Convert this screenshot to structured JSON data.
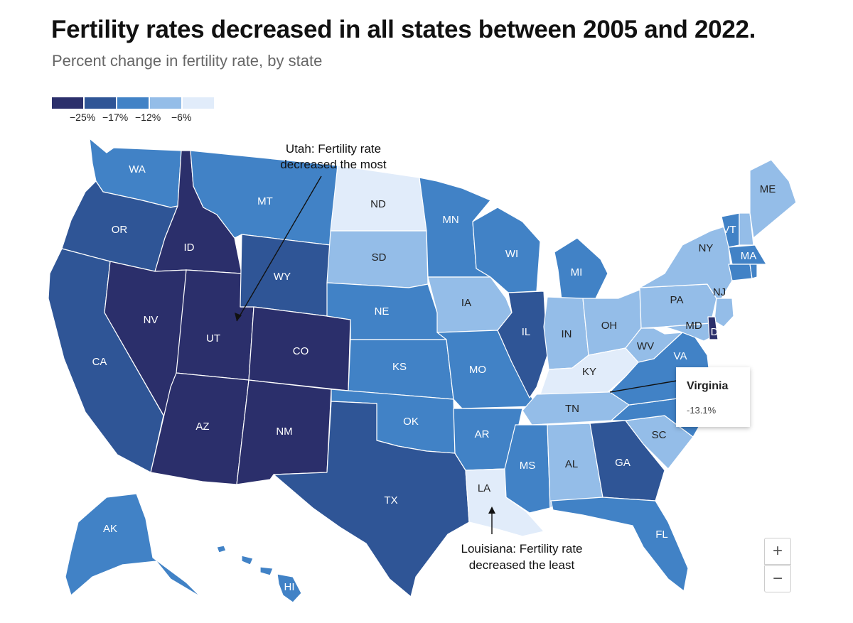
{
  "title": "Fertility rates decreased in all states between 2005 and 2022.",
  "subtitle": "Percent change in fertility rate, by state",
  "legend": {
    "colors": [
      "#2b2f6b",
      "#2f5596",
      "#4182c6",
      "#94bde8",
      "#e1ecfa"
    ],
    "labels": [
      "−25%",
      "−17%",
      "−12%",
      "−6%"
    ]
  },
  "annotations": {
    "utah": [
      "Utah: Fertility rate",
      "decreased the most"
    ],
    "louisiana": [
      "Louisiana: Fertility rate",
      "decreased the least"
    ]
  },
  "tooltip": {
    "state": "Virginia",
    "value": "-13.1%"
  },
  "zoom": {
    "in": "+",
    "out": "−"
  },
  "states": [
    {
      "abbr": "WA",
      "bin": 2
    },
    {
      "abbr": "OR",
      "bin": 1
    },
    {
      "abbr": "CA",
      "bin": 1
    },
    {
      "abbr": "ID",
      "bin": 0
    },
    {
      "abbr": "NV",
      "bin": 0
    },
    {
      "abbr": "UT",
      "bin": 0
    },
    {
      "abbr": "AZ",
      "bin": 0
    },
    {
      "abbr": "MT",
      "bin": 2
    },
    {
      "abbr": "WY",
      "bin": 1
    },
    {
      "abbr": "CO",
      "bin": 0
    },
    {
      "abbr": "NM",
      "bin": 0
    },
    {
      "abbr": "ND",
      "bin": 4
    },
    {
      "abbr": "SD",
      "bin": 3
    },
    {
      "abbr": "NE",
      "bin": 2
    },
    {
      "abbr": "KS",
      "bin": 2
    },
    {
      "abbr": "OK",
      "bin": 2
    },
    {
      "abbr": "TX",
      "bin": 1
    },
    {
      "abbr": "MN",
      "bin": 2
    },
    {
      "abbr": "IA",
      "bin": 3
    },
    {
      "abbr": "MO",
      "bin": 2
    },
    {
      "abbr": "AR",
      "bin": 2
    },
    {
      "abbr": "LA",
      "bin": 4
    },
    {
      "abbr": "WI",
      "bin": 2
    },
    {
      "abbr": "IL",
      "bin": 1
    },
    {
      "abbr": "MI",
      "bin": 2
    },
    {
      "abbr": "IN",
      "bin": 3
    },
    {
      "abbr": "OH",
      "bin": 3
    },
    {
      "abbr": "KY",
      "bin": 4
    },
    {
      "abbr": "TN",
      "bin": 3
    },
    {
      "abbr": "MS",
      "bin": 2
    },
    {
      "abbr": "AL",
      "bin": 3
    },
    {
      "abbr": "GA",
      "bin": 1
    },
    {
      "abbr": "FL",
      "bin": 2
    },
    {
      "abbr": "SC",
      "bin": 3
    },
    {
      "abbr": "WV",
      "bin": 3
    },
    {
      "abbr": "VA",
      "bin": 2
    },
    {
      "abbr": "PA",
      "bin": 3
    },
    {
      "abbr": "NY",
      "bin": 3
    },
    {
      "abbr": "ME",
      "bin": 3
    },
    {
      "abbr": "VT",
      "bin": 2
    },
    {
      "abbr": "MA",
      "bin": 2
    },
    {
      "abbr": "NJ",
      "bin": 3
    },
    {
      "abbr": "MD",
      "bin": 3
    },
    {
      "abbr": "DE",
      "bin": 0
    },
    {
      "abbr": "AK",
      "bin": 2
    },
    {
      "abbr": "HI",
      "bin": 2
    }
  ]
}
